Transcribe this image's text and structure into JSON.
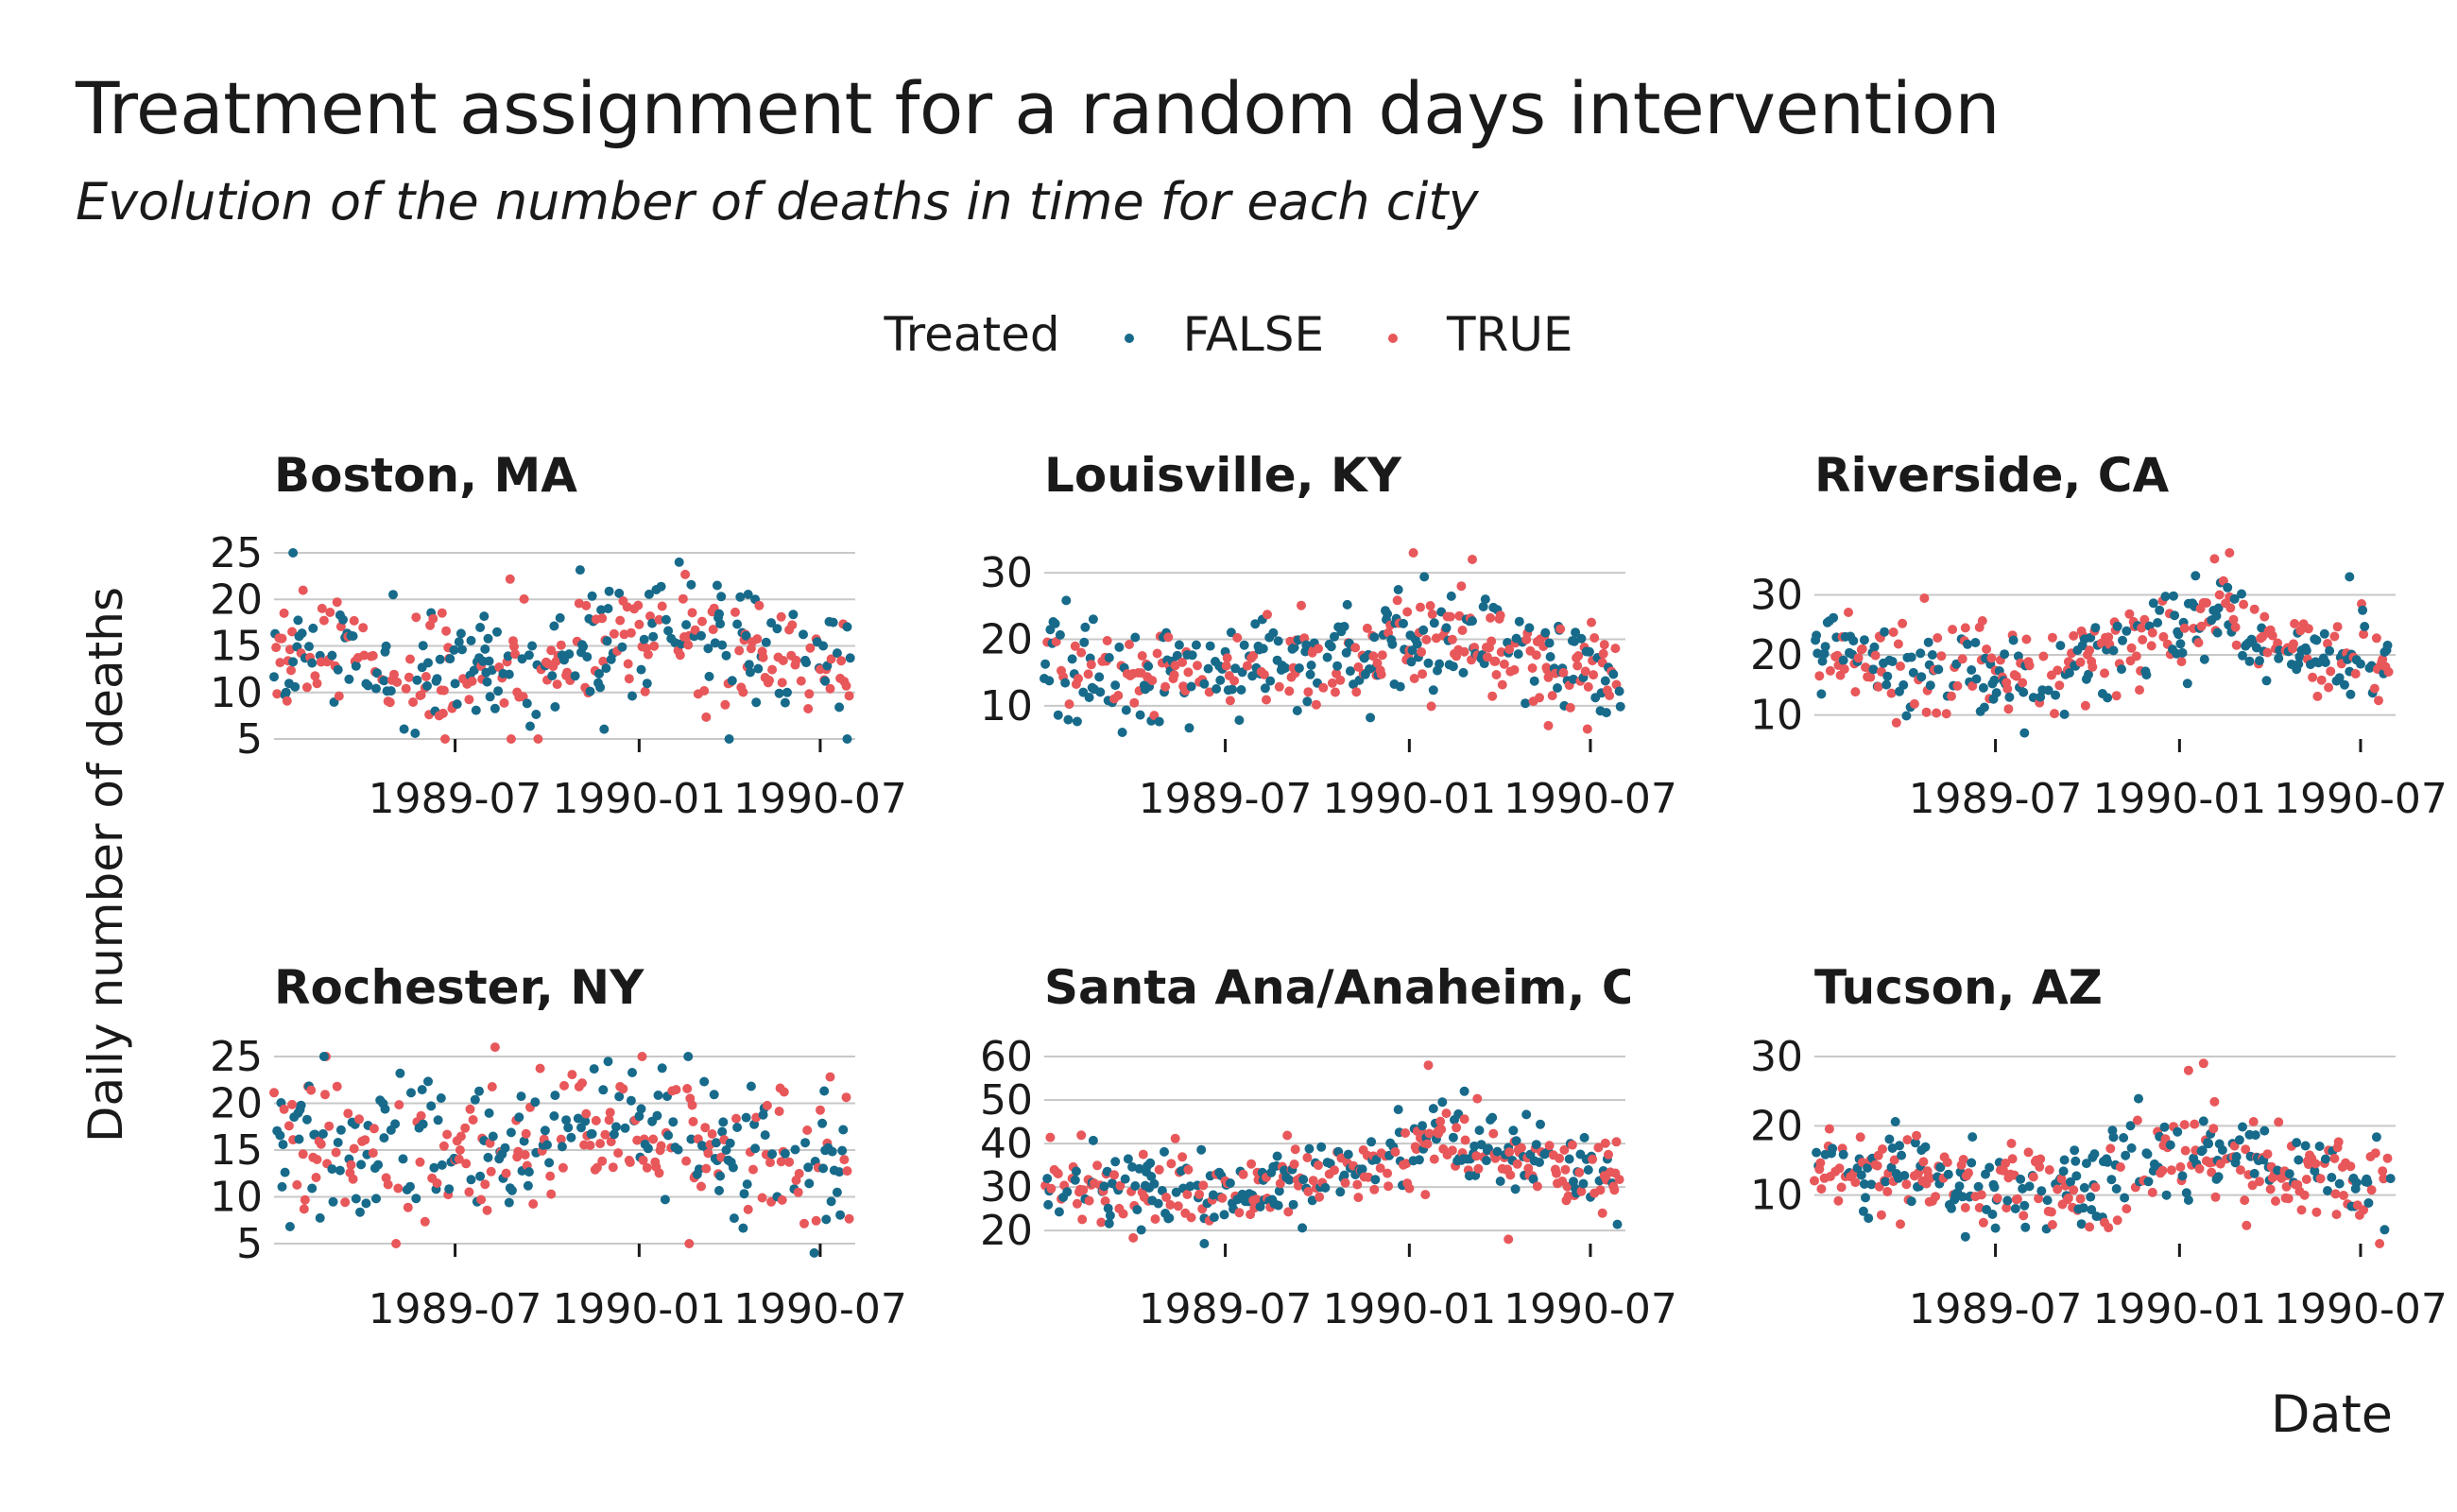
{
  "colors": {
    "false": "#176A8A",
    "true": "#E8575A"
  },
  "chart_data": {
    "type": "scatter",
    "title": "Treatment assignment for a random days intervention",
    "subtitle": "Evolution of the number of deaths in time for each city",
    "xlabel": "Date",
    "ylabel": "Daily number of deaths",
    "legend": {
      "title": "Treated",
      "entries": [
        "FALSE",
        "TRUE"
      ],
      "position": "top"
    },
    "x_ticks": [
      "1989-07",
      "1990-01",
      "1990-07"
    ],
    "x_range": [
      "1989-01-01",
      "1990-08-05"
    ],
    "grid": "horizontal",
    "series_names": [
      "FALSE",
      "TRUE"
    ],
    "panels": [
      {
        "city": "Boston, MA",
        "y_ticks": [
          5,
          10,
          15,
          20,
          25
        ],
        "y_range": [
          5,
          25
        ],
        "trend": [
          [
            0,
            15
          ],
          [
            0.2,
            13
          ],
          [
            0.35,
            12
          ],
          [
            0.5,
            13.5
          ],
          [
            0.62,
            16.5
          ],
          [
            0.72,
            16
          ],
          [
            0.85,
            14
          ],
          [
            1,
            12.5
          ]
        ],
        "noise": 3.2,
        "extremes": [
          {
            "x": "1989-01-20",
            "y": 25,
            "s": "FALSE"
          },
          {
            "x": "1990-02-10",
            "y": 24,
            "s": "FALSE"
          },
          {
            "x": "1990-04-01",
            "y": 5,
            "s": "FALSE"
          },
          {
            "x": "1990-07-28",
            "y": 5,
            "s": "FALSE"
          }
        ]
      },
      {
        "city": "Louisville, KY",
        "y_ticks": [
          10,
          20,
          30
        ],
        "y_range": [
          5,
          33
        ],
        "trend": [
          [
            0,
            17.5
          ],
          [
            0.2,
            15
          ],
          [
            0.4,
            15
          ],
          [
            0.55,
            18
          ],
          [
            0.65,
            21
          ],
          [
            0.75,
            19
          ],
          [
            0.9,
            15.5
          ],
          [
            1,
            15
          ]
        ],
        "noise": 3.6,
        "extremes": [
          {
            "x": "1990-01-05",
            "y": 33,
            "s": "TRUE"
          },
          {
            "x": "1990-03-05",
            "y": 32,
            "s": "TRUE"
          },
          {
            "x": "1989-03-20",
            "y": 6,
            "s": "FALSE"
          },
          {
            "x": "1990-05-20",
            "y": 7,
            "s": "TRUE"
          }
        ]
      },
      {
        "city": "Riverside, CA",
        "y_ticks": [
          10,
          20,
          30
        ],
        "y_range": [
          6,
          37
        ],
        "trend": [
          [
            0,
            20
          ],
          [
            0.2,
            17
          ],
          [
            0.4,
            17
          ],
          [
            0.55,
            21
          ],
          [
            0.68,
            27
          ],
          [
            0.78,
            23
          ],
          [
            0.9,
            19
          ],
          [
            1,
            19
          ]
        ],
        "noise": 3.5,
        "extremes": [
          {
            "x": "1990-02-20",
            "y": 37,
            "s": "TRUE"
          },
          {
            "x": "1990-02-05",
            "y": 36,
            "s": "TRUE"
          },
          {
            "x": "1989-07-30",
            "y": 7,
            "s": "FALSE"
          },
          {
            "x": "1990-06-20",
            "y": 33,
            "s": "FALSE"
          }
        ]
      },
      {
        "city": "Rochester, NY",
        "y_ticks": [
          5,
          10,
          15,
          20,
          25
        ],
        "y_range": [
          5,
          25
        ],
        "trend": [
          [
            0,
            17
          ],
          [
            0.15,
            14
          ],
          [
            0.3,
            14.5
          ],
          [
            0.45,
            15.5
          ],
          [
            0.6,
            17
          ],
          [
            0.75,
            16
          ],
          [
            0.9,
            14.5
          ],
          [
            1,
            14
          ]
        ],
        "noise": 3.6,
        "extremes": [
          {
            "x": "1989-08-10",
            "y": 26,
            "s": "TRUE"
          },
          {
            "x": "1990-06-25",
            "y": 4,
            "s": "FALSE"
          },
          {
            "x": "1990-02-20",
            "y": 5,
            "s": "TRUE"
          },
          {
            "x": "1989-02-20",
            "y": 25,
            "s": "FALSE"
          }
        ]
      },
      {
        "city": "Santa Ana/Anaheim, CA",
        "y_ticks": [
          20,
          30,
          40,
          50,
          60
        ],
        "y_range": [
          17,
          60
        ],
        "trend": [
          [
            0,
            31
          ],
          [
            0.2,
            29
          ],
          [
            0.4,
            31
          ],
          [
            0.55,
            34
          ],
          [
            0.68,
            41
          ],
          [
            0.78,
            38
          ],
          [
            0.9,
            33
          ],
          [
            1,
            32
          ]
        ],
        "noise": 4.2,
        "extremes": [
          {
            "x": "1990-01-20",
            "y": 58,
            "s": "TRUE"
          },
          {
            "x": "1989-06-10",
            "y": 17,
            "s": "FALSE"
          },
          {
            "x": "1990-04-10",
            "y": 18,
            "s": "TRUE"
          },
          {
            "x": "1990-02-25",
            "y": 52,
            "s": "FALSE"
          }
        ]
      },
      {
        "city": "Tucson, AZ",
        "y_ticks": [
          10,
          20,
          30
        ],
        "y_range": [
          3,
          30
        ],
        "trend": [
          [
            0,
            14
          ],
          [
            0.2,
            12
          ],
          [
            0.4,
            11
          ],
          [
            0.55,
            13
          ],
          [
            0.68,
            16.5
          ],
          [
            0.78,
            15
          ],
          [
            0.9,
            12
          ],
          [
            1,
            11.5
          ]
        ],
        "noise": 3.2,
        "extremes": [
          {
            "x": "1990-01-25",
            "y": 29,
            "s": "TRUE"
          },
          {
            "x": "1990-01-10",
            "y": 28,
            "s": "TRUE"
          },
          {
            "x": "1989-06-01",
            "y": 4,
            "s": "FALSE"
          },
          {
            "x": "1990-07-25",
            "y": 5,
            "s": "FALSE"
          }
        ]
      }
    ]
  }
}
